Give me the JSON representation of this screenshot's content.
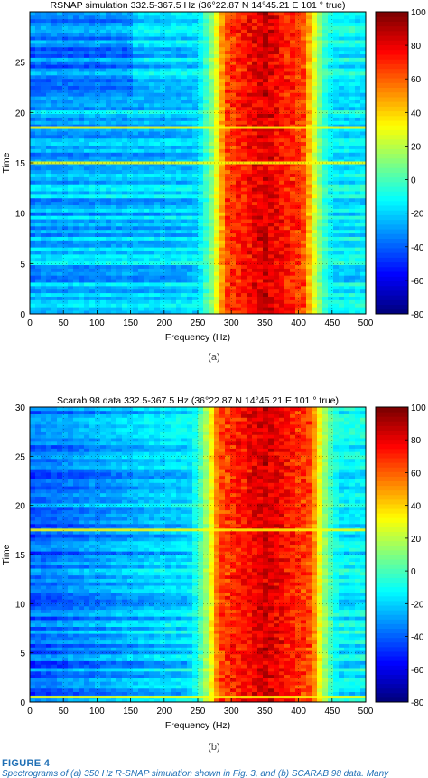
{
  "figure": {
    "label": "FIGURE 4",
    "caption_start": "Spectrograms of (a) 350 Hz R-SNAP simulation shown in Fig. 3, and (b) SCARAB 98 data. Many"
  },
  "chart_data": [
    {
      "id": "a",
      "type": "heatmap",
      "title": "RSNAP simulation 332.5-367.5 Hz (36°22.87 N 14°45.21 E 101 ° true)",
      "xlabel": "Frequency (Hz)",
      "ylabel": "Time",
      "sublabel": "(a)",
      "xlim": [
        0,
        500
      ],
      "ylim": [
        0,
        30
      ],
      "xticks": [
        0,
        50,
        100,
        150,
        200,
        250,
        300,
        350,
        400,
        450,
        500
      ],
      "yticks": [
        0,
        5,
        10,
        15,
        20,
        25
      ],
      "colorbar": {
        "range": [
          -80,
          100
        ],
        "ticks": [
          100,
          80,
          60,
          40,
          20,
          0,
          -20,
          -40,
          -60,
          -80
        ]
      },
      "grid": true,
      "band": {
        "low_hz": 290,
        "high_hz": 410,
        "center_hz": 350
      },
      "strong_rows": [
        15,
        18.5
      ]
    },
    {
      "id": "b",
      "type": "heatmap",
      "title": "Scarab 98 data 332.5-367.5 Hz (36°22.87 N 14°45.21 E 101 ° true)",
      "xlabel": "Frequency (Hz)",
      "ylabel": "Time",
      "sublabel": "(b)",
      "xlim": [
        0,
        500
      ],
      "ylim": [
        0,
        30
      ],
      "xticks": [
        0,
        50,
        100,
        150,
        200,
        250,
        300,
        350,
        400,
        450,
        500
      ],
      "yticks": [
        0,
        5,
        10,
        15,
        20,
        25,
        30
      ],
      "colorbar": {
        "range": [
          -80,
          100
        ],
        "ticks": [
          100,
          80,
          60,
          40,
          20,
          0,
          -20,
          -40,
          -60,
          -80
        ]
      },
      "grid": true,
      "band": {
        "low_hz": 275,
        "high_hz": 415,
        "center_hz": 350
      },
      "strong_rows": [
        0.5,
        17.5
      ]
    }
  ]
}
